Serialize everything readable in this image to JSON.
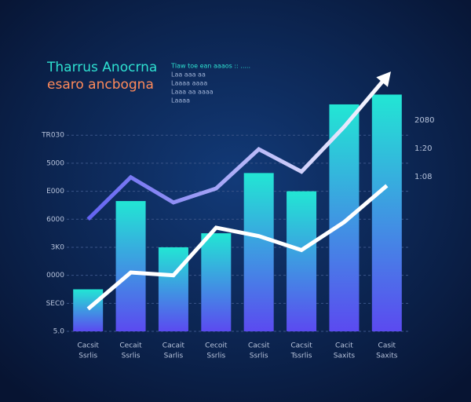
{
  "chart_data": {
    "type": "bar",
    "title": "Tharrus Anocrna",
    "subtitle": "esaro ancbogna",
    "annotations": [
      "Tlaw toe ean aaaos :: .....",
      "Laa aaa aa",
      "Laaaa aaaa",
      "Laaa aa aaaa",
      "Laaaa"
    ],
    "right_labels": [
      "2080",
      "1:20",
      "1:08"
    ],
    "categories": [
      "Cacsit",
      "Cecait",
      "Cacait",
      "Cecoit",
      "Cacsit",
      "Cacsit",
      "Cacit",
      "Casit"
    ],
    "category_sublabels": [
      "Ssrlis",
      "Ssrlis",
      "Sarlis",
      "Ssrlis",
      "Ssrlis",
      "Tssrlis",
      "Saxits",
      "Saxits"
    ],
    "ylim": [
      0,
      9.5
    ],
    "yticks": [
      {
        "value": 0,
        "label": "5.0"
      },
      {
        "value": 1,
        "label": "SEC0"
      },
      {
        "value": 2,
        "label": "0000"
      },
      {
        "value": 3,
        "label": "3K0"
      },
      {
        "value": 4,
        "label": "6000"
      },
      {
        "value": 5,
        "label": "E000"
      },
      {
        "value": 6,
        "label": "5000"
      },
      {
        "value": 7,
        "label": "TR030"
      }
    ],
    "grid": true,
    "bar_colors": [
      "#22e6d4",
      "#5b4af0"
    ],
    "series": [
      {
        "kind": "bar",
        "values": [
          1.5,
          4.65,
          3.0,
          3.5,
          5.65,
          5.0,
          8.1,
          8.45
        ]
      },
      {
        "kind": "line",
        "color": "#ffffff",
        "values": [
          0.8,
          2.1,
          2.0,
          3.7,
          3.4,
          2.9,
          3.9,
          5.2
        ]
      },
      {
        "kind": "line",
        "color": "#5a5af0",
        "values": [
          4.0,
          5.5,
          4.6,
          5.1,
          6.5,
          5.7,
          7.3,
          9.1
        ]
      }
    ]
  }
}
